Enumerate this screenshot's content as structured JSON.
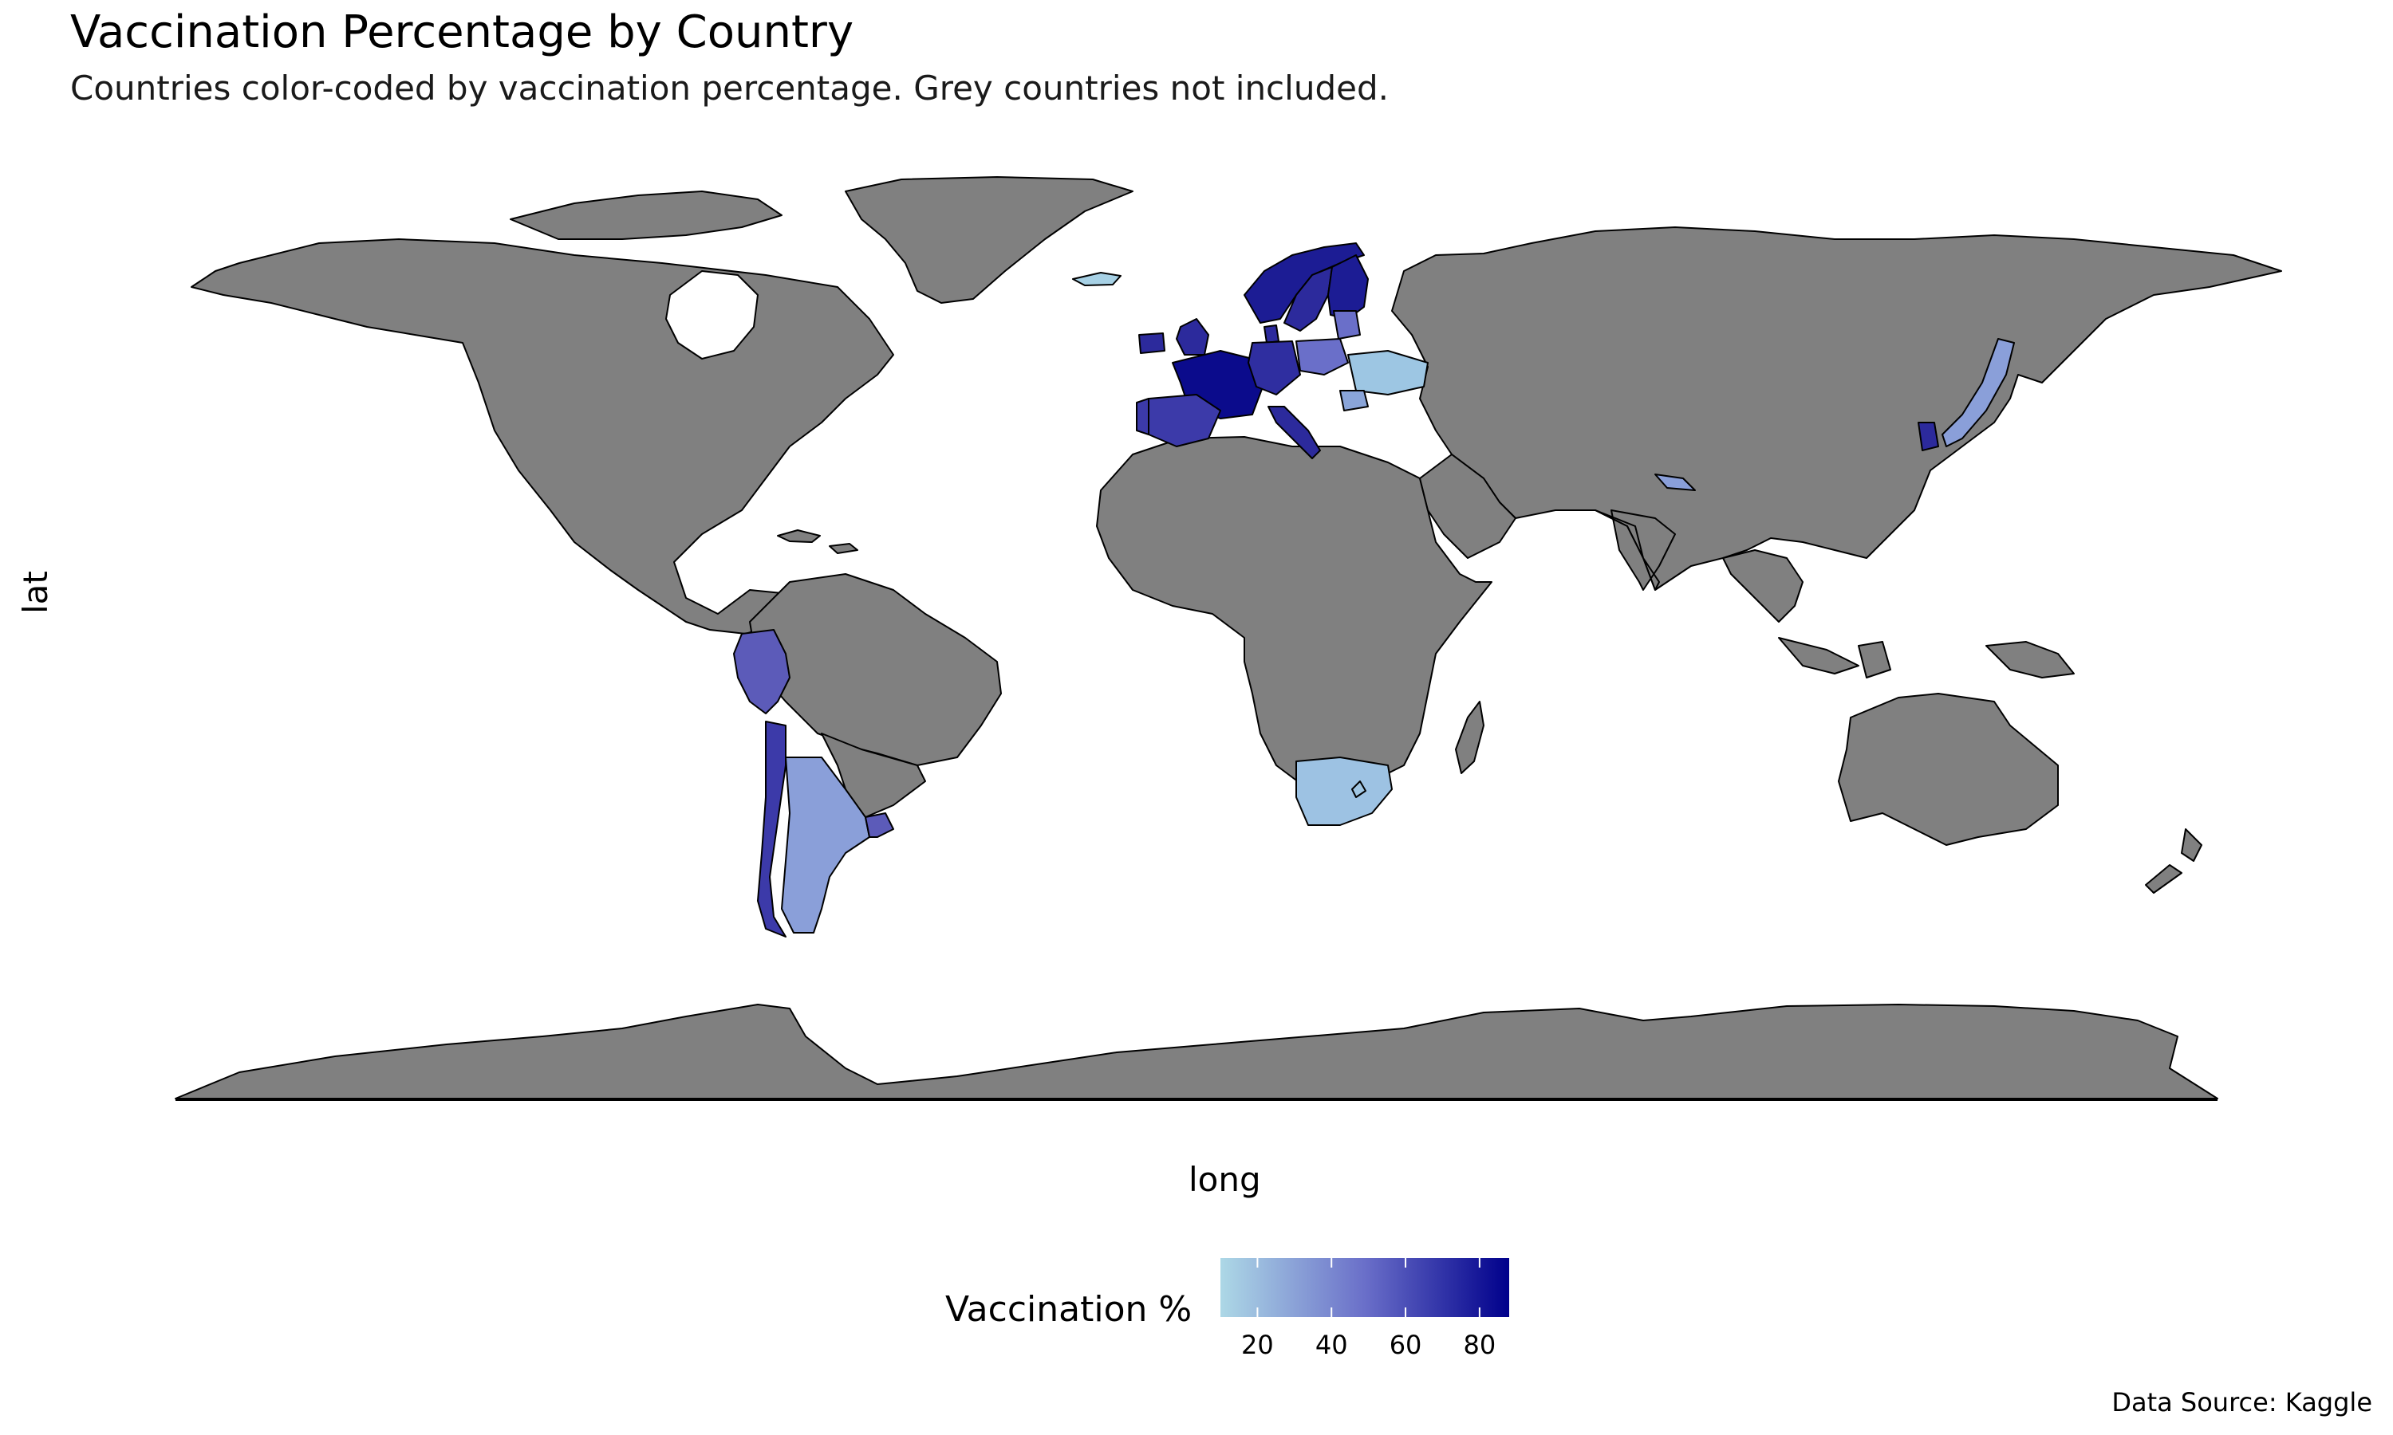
{
  "chart_data": {
    "type": "choropleth",
    "title": "Vaccination Percentage by Country",
    "subtitle": "Countries color-coded by vaccination percentage. Grey countries not included.",
    "xlabel": "long",
    "ylabel": "lat",
    "caption": "Data Source: Kaggle",
    "legend": {
      "title": "Vaccination %",
      "placement": "bottom",
      "range": [
        10,
        88
      ],
      "ticks": [
        20,
        40,
        60,
        80
      ],
      "colors": [
        "#add8e6",
        "#00008b"
      ]
    },
    "missing_color": "#808080",
    "regions": [
      {
        "region": "Iceland",
        "value": 12
      },
      {
        "region": "Norway",
        "value": 85
      },
      {
        "region": "Sweden",
        "value": 80
      },
      {
        "region": "Finland",
        "value": 85
      },
      {
        "region": "Denmark",
        "value": 80
      },
      {
        "region": "United Kingdom",
        "value": 80
      },
      {
        "region": "Ireland",
        "value": 80
      },
      {
        "region": "France",
        "value": 88
      },
      {
        "region": "Spain",
        "value": 70
      },
      {
        "region": "Portugal",
        "value": 72
      },
      {
        "region": "Germany",
        "value": 78
      },
      {
        "region": "Italy",
        "value": 80
      },
      {
        "region": "Poland",
        "value": 55
      },
      {
        "region": "Ukraine",
        "value": 18
      },
      {
        "region": "Romania",
        "value": 28
      },
      {
        "region": "Estonia",
        "value": 60
      },
      {
        "region": "Latvia",
        "value": 55
      },
      {
        "region": "Lithuania",
        "value": 50
      },
      {
        "region": "Nepal",
        "value": 40
      },
      {
        "region": "South Korea",
        "value": 80
      },
      {
        "region": "Japan",
        "value": 40
      },
      {
        "region": "Peru",
        "value": 60
      },
      {
        "region": "Chile",
        "value": 70
      },
      {
        "region": "Argentina",
        "value": 40
      },
      {
        "region": "Uruguay",
        "value": 60
      },
      {
        "region": "South Africa",
        "value": 22
      },
      {
        "region": "Lesotho",
        "value": 20
      }
    ]
  }
}
